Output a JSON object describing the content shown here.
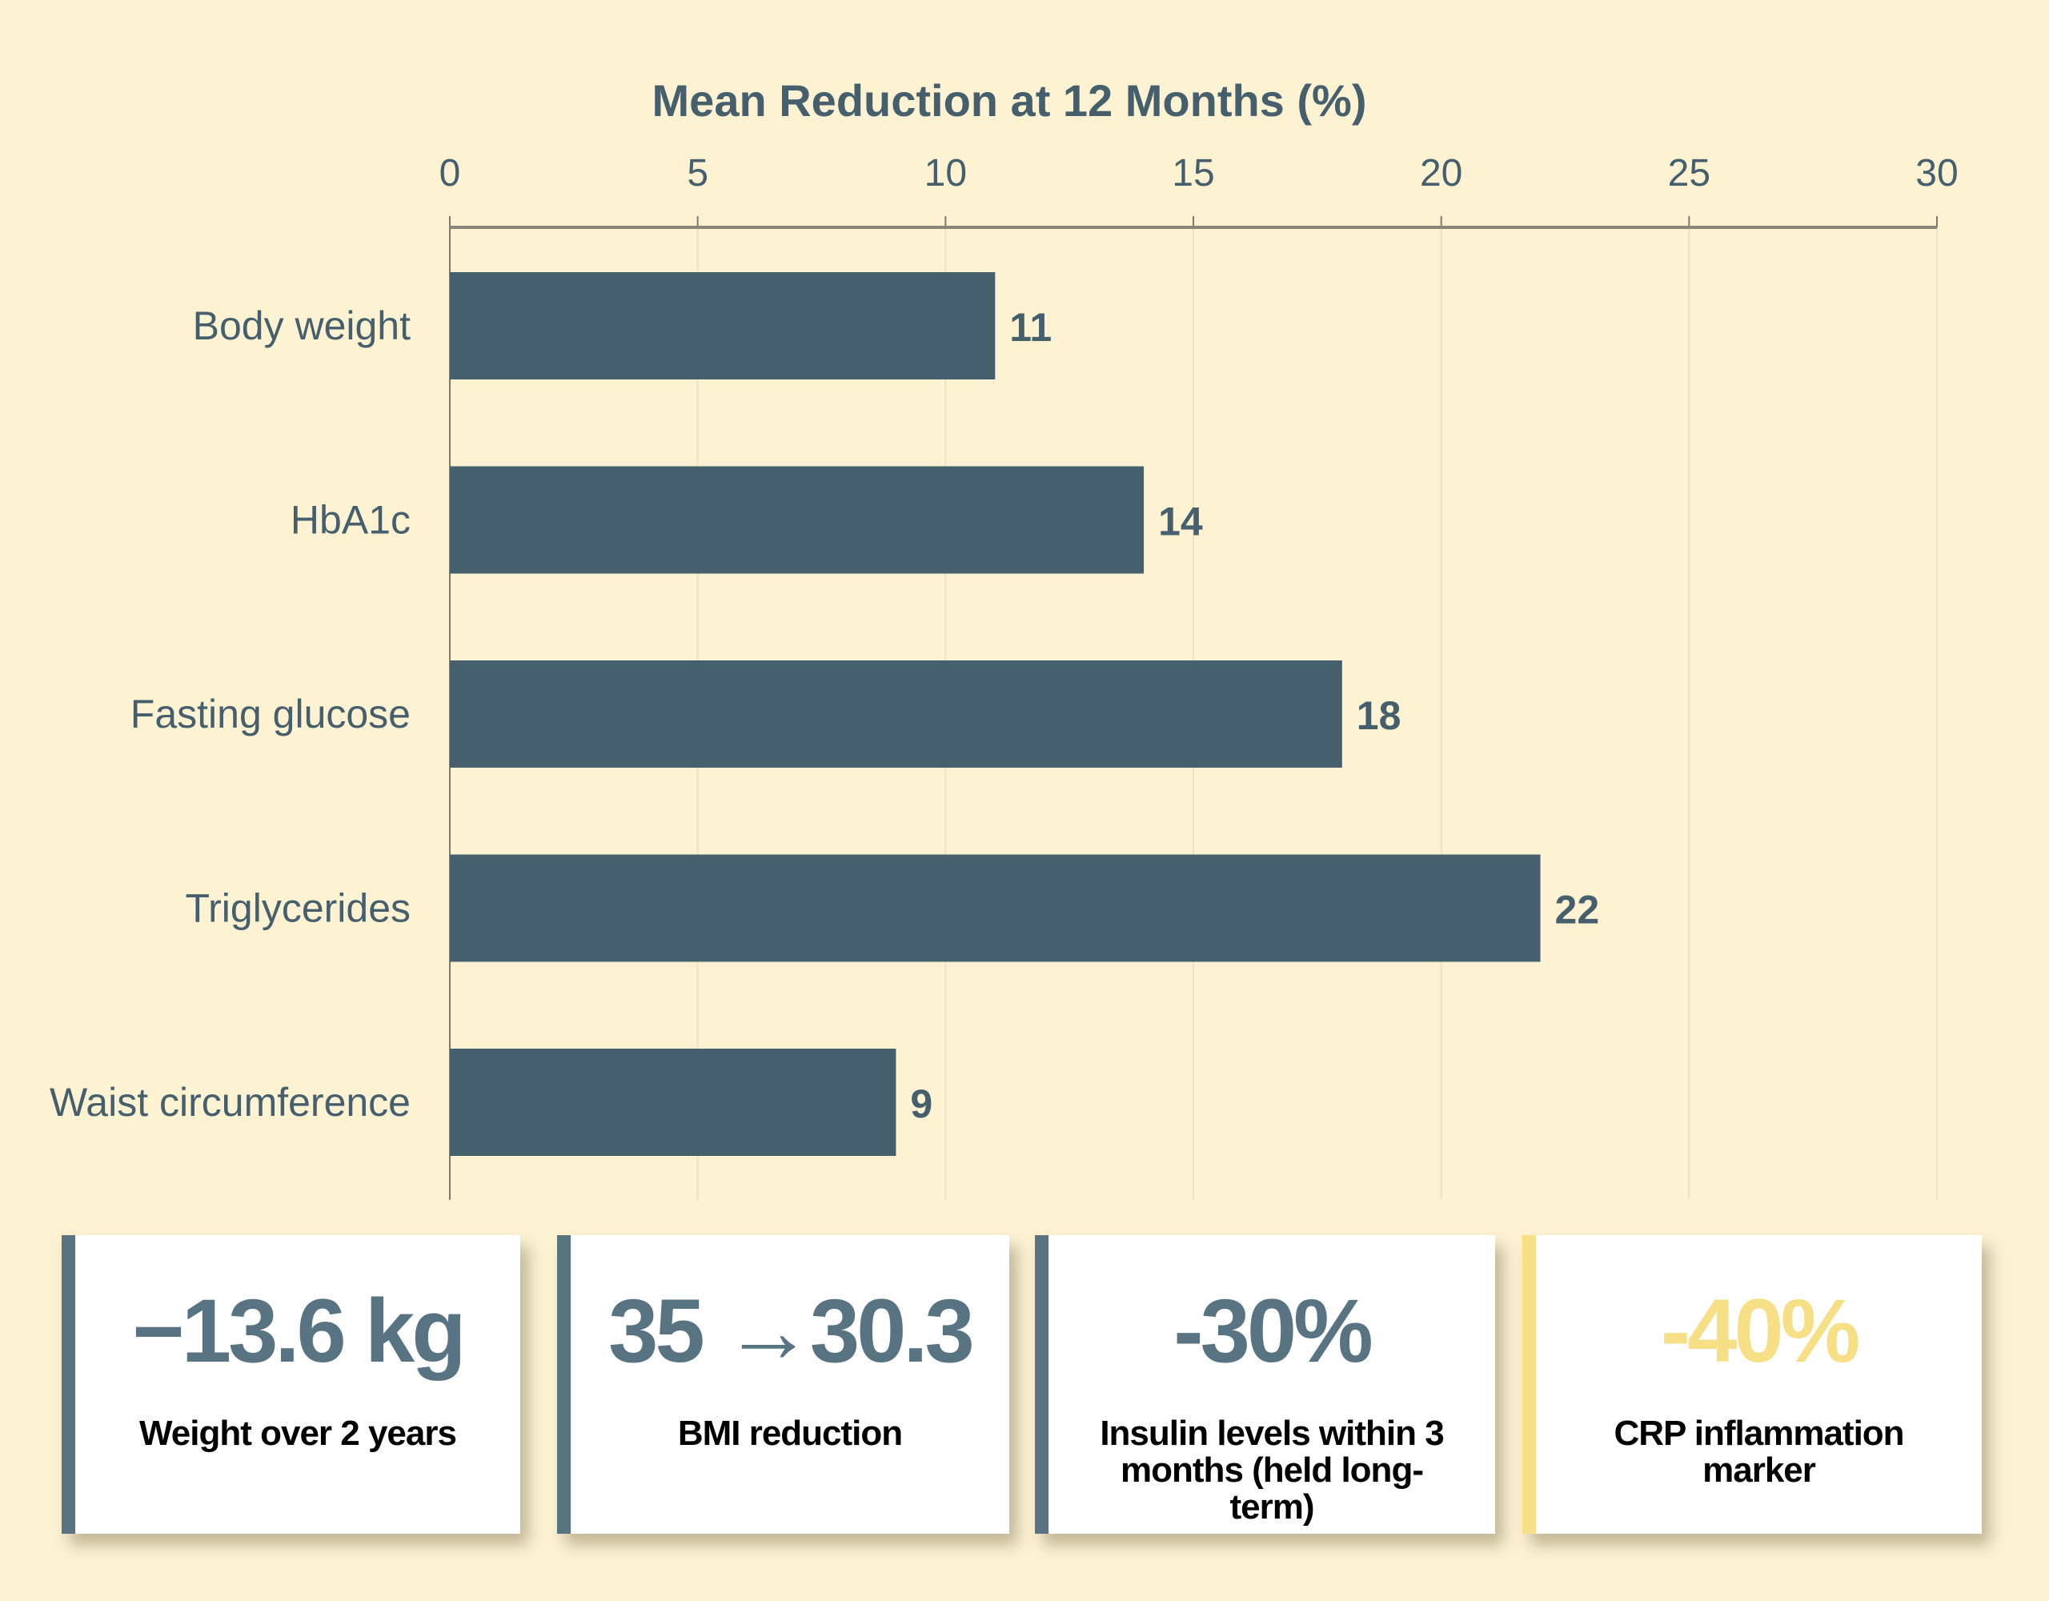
{
  "chart_data": {
    "type": "bar",
    "orientation": "horizontal",
    "title": "Mean Reduction at 12 Months (%)",
    "xlabel": "",
    "ylabel": "",
    "xlim": [
      0,
      30
    ],
    "ticks": [
      "0",
      "5",
      "10",
      "15",
      "20",
      "25",
      "30"
    ],
    "tick_values": [
      0,
      5,
      10,
      15,
      20,
      25,
      30
    ],
    "categories": [
      "Body weight",
      "HbA1c",
      "Fasting glucose",
      "Triglycerides",
      "Waist circumference"
    ],
    "values": [
      11,
      14,
      18,
      22,
      9
    ],
    "data_labels": [
      "11",
      "14",
      "18",
      "22",
      "9"
    ],
    "grid": true,
    "bar_color": "#455f6d",
    "text_color": "#455f6d"
  },
  "cards": [
    {
      "value": "−13.6 kg",
      "label": "Weight over 2 years",
      "accent": "#587382"
    },
    {
      "value": "35 →30.3",
      "label": "BMI reduction",
      "accent": "#587382"
    },
    {
      "value": "-30%",
      "label": "Insulin levels within 3 months (held long-term)",
      "accent": "#587382"
    },
    {
      "value": "-40%",
      "label": "CRP inflammation marker",
      "accent": "#f7df85"
    }
  ]
}
